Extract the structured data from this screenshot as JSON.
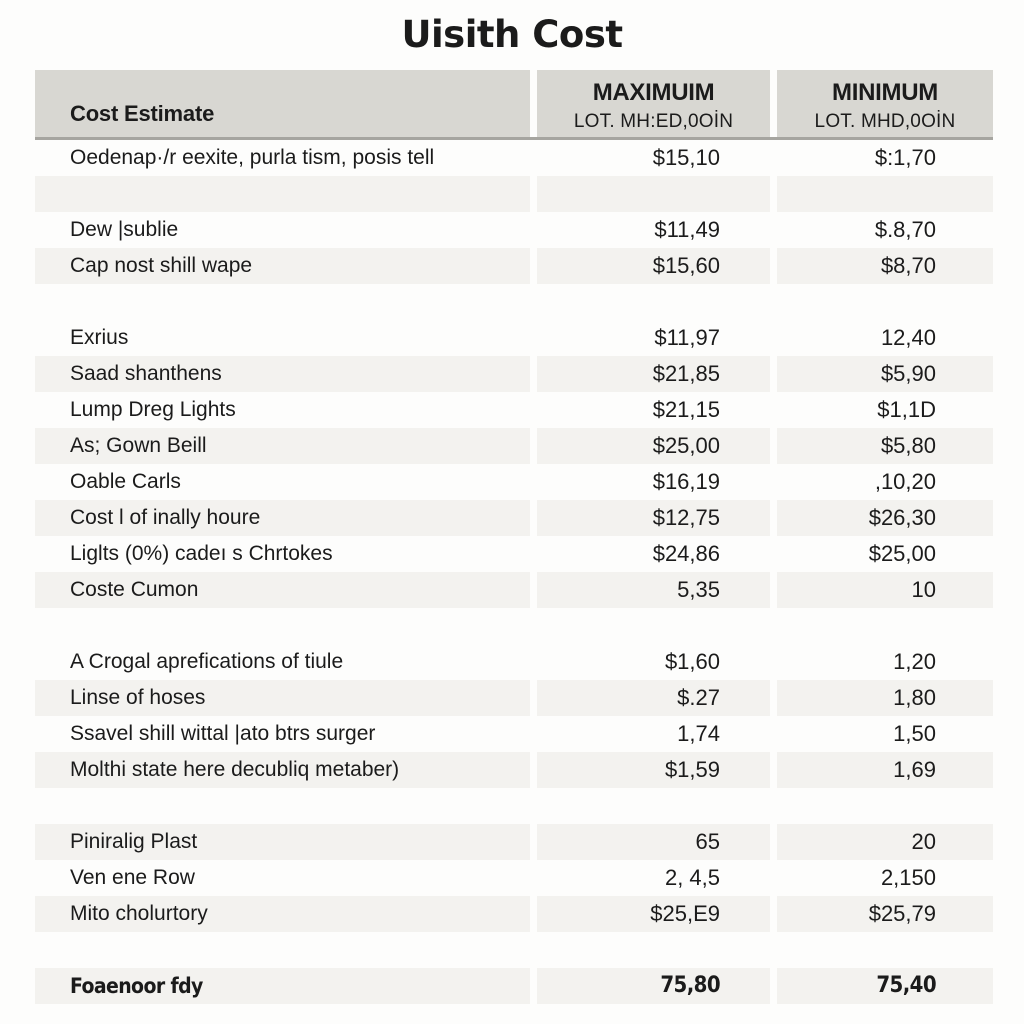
{
  "title": "Uisith Cost",
  "table": {
    "columns": {
      "label_header": "Cost Estimate",
      "max_header": "MAXIMUIM",
      "max_subheader": "LOT. MH:ED,0OİN",
      "min_header": "MINIMUM",
      "min_subheader": "LOT. MHD,0OİN"
    },
    "rows": [
      {
        "label": "Oedenap·/r eexite, purla tism, posis tell",
        "max": "$15,10",
        "min": "$:1,70",
        "shaded": false
      },
      {
        "label": "",
        "max": "",
        "min": "",
        "shaded": true
      },
      {
        "label": "Dew |sublie",
        "max": "$11,49",
        "min": "$.8,70",
        "shaded": false
      },
      {
        "label": "Cap nost shill wape",
        "max": "$15,60",
        "min": "$8,70",
        "shaded": true
      },
      {
        "label": "",
        "max": "",
        "min": "",
        "shaded": false
      },
      {
        "label": "Exrius",
        "max": "$11,97",
        "min": "12,40",
        "shaded": false
      },
      {
        "label": "Saad shanthens",
        "max": "$21,85",
        "min": "$5,90",
        "shaded": true
      },
      {
        "label": "Lump Dreg Lights",
        "max": "$21,15",
        "min": "$1,1D",
        "shaded": false
      },
      {
        "label": "As; Gown Beill",
        "max": "$25,00",
        "min": "$5,80",
        "shaded": true
      },
      {
        "label": "Oable Carls",
        "max": "$16,19",
        "min": ",10,20",
        "shaded": false
      },
      {
        "label": "Cost l of inally houre",
        "max": "$12,75",
        "min": "$26,30",
        "shaded": true
      },
      {
        "label": "Liglts (0%) cadeı s Chrtokes",
        "max": "$24,86",
        "min": "$25,00",
        "shaded": false
      },
      {
        "label": "Coste Cumon",
        "max": "5,35",
        "min": "10",
        "shaded": true
      },
      {
        "label": "",
        "max": "",
        "min": "",
        "shaded": false
      },
      {
        "label": "A Crogal aprefications of tiule",
        "max": "$1,60",
        "min": "1,20",
        "shaded": false
      },
      {
        "label": "Linse of hoses",
        "max": "$.27",
        "min": "1,80",
        "shaded": true
      },
      {
        "label": "Ssavel shill wittal |ato btrs surger",
        "max": "1,74",
        "min": "1,50",
        "shaded": false
      },
      {
        "label": "Molthi state here decubliq metaber)",
        "max": "$1,59",
        "min": "1,69",
        "shaded": true
      },
      {
        "label": "",
        "max": "",
        "min": "",
        "shaded": false
      },
      {
        "label": "Piniralig Plast",
        "max": "65",
        "min": "20",
        "shaded": true
      },
      {
        "label": "Ven ene Row",
        "max": "2, 4,5",
        "min": "2,150",
        "shaded": false
      },
      {
        "label": "Mito cholurtory",
        "max": "$25,E9",
        "min": "$25,79",
        "shaded": true
      },
      {
        "label": "",
        "max": "",
        "min": "",
        "shaded": false
      },
      {
        "label": "Foaenoor fdy",
        "max": "75,80",
        "min": "75,40",
        "shaded": true,
        "emph": true
      }
    ]
  },
  "colors": {
    "page_bg": "#fdfdfc",
    "header_bg": "#d8d7d2",
    "row_shaded": "#f3f2ef",
    "text": "#1b1b1b",
    "header_border": "#a6a5a0"
  }
}
